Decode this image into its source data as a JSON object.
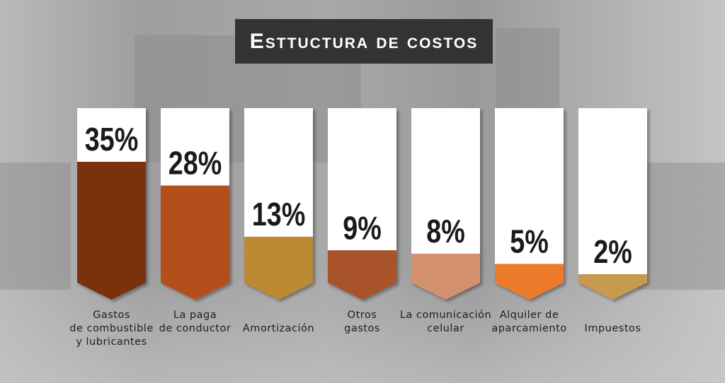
{
  "chart_data": {
    "type": "bar",
    "title": "Esttuctura de costos",
    "categories": [
      [
        "Gastos",
        "de combustible",
        "y lubricantes"
      ],
      [
        "La paga",
        "de conductor"
      ],
      [
        "Amortización"
      ],
      [
        "Otros",
        "gastos"
      ],
      [
        "La comunicación",
        "celular"
      ],
      [
        "Alquiler de",
        "aparcamiento"
      ],
      [
        "Impuestos"
      ]
    ],
    "values": [
      35,
      28,
      13,
      9,
      8,
      5,
      2
    ],
    "value_labels": [
      "35%",
      "28%",
      "13%",
      "9%",
      "8%",
      "5%",
      "2%"
    ],
    "colors": [
      "#7a3210",
      "#b44f1a",
      "#bb8a32",
      "#a8522b",
      "#d4916e",
      "#ed7a2a",
      "#c89a50"
    ],
    "unit": "%",
    "grid": false,
    "legend": "none"
  }
}
